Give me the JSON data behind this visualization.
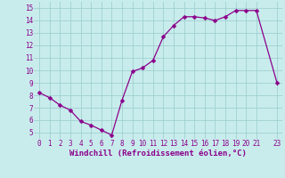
{
  "x": [
    0,
    1,
    2,
    3,
    4,
    5,
    6,
    7,
    8,
    9,
    10,
    11,
    12,
    13,
    14,
    15,
    16,
    17,
    18,
    19,
    20,
    21,
    23
  ],
  "y": [
    8.2,
    7.8,
    7.2,
    6.8,
    5.9,
    5.6,
    5.2,
    4.8,
    7.6,
    9.9,
    10.2,
    10.8,
    12.7,
    13.6,
    14.3,
    14.3,
    14.2,
    14.0,
    14.3,
    14.8,
    14.8,
    14.8,
    9.0
  ],
  "line_color": "#8B008B",
  "marker_color": "#8B008B",
  "bg_color": "#c8ecec",
  "grid_color": "#a0d0d0",
  "xlabel": "Windchill (Refroidissement éolien,°C)",
  "xlabel_color": "#8B008B",
  "xtick_labels": [
    "0",
    "1",
    "2",
    "3",
    "4",
    "5",
    "6",
    "7",
    "8",
    "9",
    "10",
    "11",
    "12",
    "13",
    "14",
    "15",
    "16",
    "17",
    "18",
    "19",
    "20",
    "21",
    "23"
  ],
  "ytick_labels": [
    "5",
    "6",
    "7",
    "8",
    "9",
    "10",
    "11",
    "12",
    "13",
    "14",
    "15"
  ],
  "yticks": [
    5,
    6,
    7,
    8,
    9,
    10,
    11,
    12,
    13,
    14,
    15
  ],
  "ylim": [
    4.5,
    15.5
  ],
  "xlim": [
    -0.5,
    23.5
  ],
  "tick_color": "#8B008B",
  "tick_fontsize": 5.5,
  "xlabel_fontsize": 6.5,
  "marker_size": 2.5,
  "linewidth": 0.9
}
